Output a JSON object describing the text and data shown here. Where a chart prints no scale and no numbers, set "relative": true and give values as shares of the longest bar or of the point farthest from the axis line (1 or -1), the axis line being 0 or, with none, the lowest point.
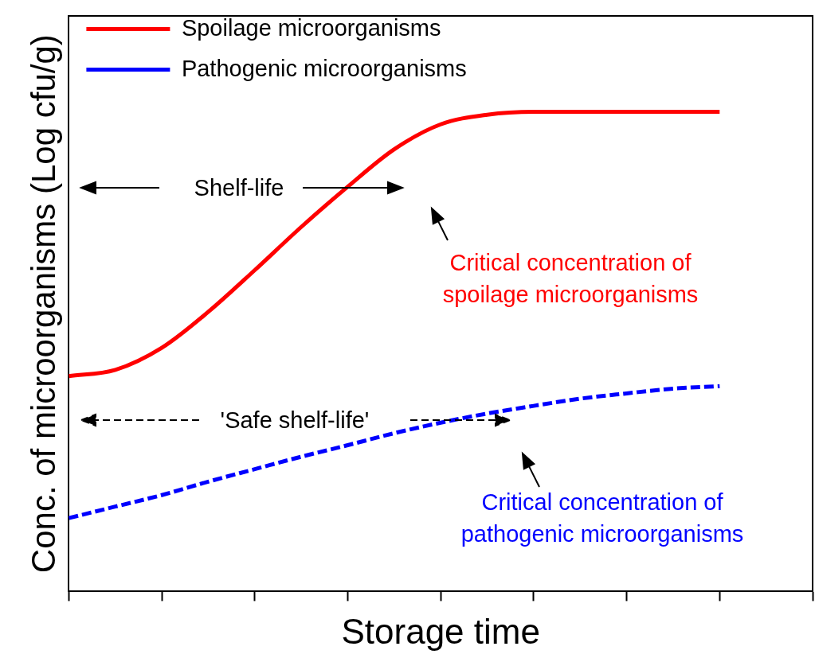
{
  "chart_data": {
    "type": "line",
    "relative": true,
    "xlabel": "Storage time",
    "ylabel": "Conc. of microorganisms (Log cfu/g)",
    "legend": "top left",
    "marker": "none",
    "categories": [
      null,
      null,
      null,
      null,
      null,
      null,
      null,
      null,
      null,
      null,
      null,
      null,
      null,
      null,
      null,
      null,
      null
    ],
    "series": [
      {
        "name": "Spoilage microorganisms",
        "color": "#ff0000",
        "line_style": "solid",
        "values": [
          0.449,
          0.462,
          0.508,
          0.583,
          0.67,
          0.76,
          0.844,
          0.922,
          0.974,
          0.994,
          1,
          1,
          1,
          1,
          1,
          null,
          null
        ]
      },
      {
        "name": "Pathogenic microorganisms",
        "color": "#0000ff",
        "line_style": "dashed",
        "values": [
          0.153,
          0.177,
          0.201,
          0.229,
          0.255,
          0.281,
          0.305,
          0.33,
          0.352,
          0.371,
          0.387,
          0.402,
          0.413,
          0.423,
          0.428,
          null,
          null
        ]
      }
    ],
    "annotations": [
      "Shelf-life",
      "'Safe shelf-life'",
      "Critical concentration of spoilage microorganisms",
      "Critical concentration of pathogenic microorganisms"
    ]
  }
}
